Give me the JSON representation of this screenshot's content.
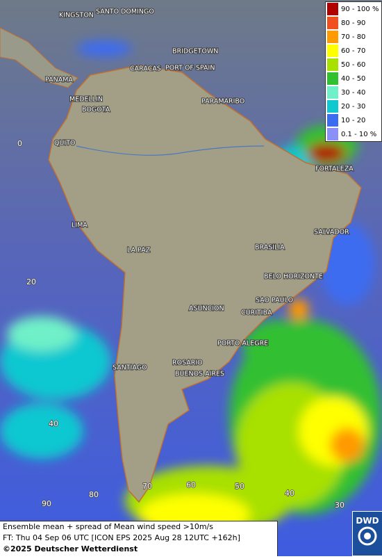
{
  "map": {
    "cities": [
      "KINGSTON",
      "SANTO DOMINGO",
      "BRIDGETOWN",
      "CARACAS",
      "PORT OF SPAIN",
      "PANAMA",
      "MEDELLIN",
      "BOGOTA",
      "PARAMARIBO",
      "QUITO",
      "FORTALEZA",
      "LIMA",
      "SALVADOR",
      "LA PAZ",
      "BRASILIA",
      "BELO HORIZONTE",
      "SAO PAULO",
      "ASUNCION",
      "CURITIBA",
      "PORTO ALEGRE",
      "ROSARIO",
      "SANTIAGO",
      "BUENOS AIRES"
    ],
    "grid_labels": [
      "0",
      "20",
      "40",
      "90",
      "80",
      "70",
      "60",
      "50",
      "40",
      "30"
    ]
  },
  "legend": {
    "items": [
      {
        "label": "90 - 100 %",
        "color": "#b00000"
      },
      {
        "label": "80 - 90",
        "color": "#f05020"
      },
      {
        "label": "70 - 80",
        "color": "#ff9a00"
      },
      {
        "label": "60 - 70",
        "color": "#ffff00"
      },
      {
        "label": "50 - 60",
        "color": "#a8e000"
      },
      {
        "label": "40 - 50",
        "color": "#30c030"
      },
      {
        "label": "30 - 40",
        "color": "#70f0c8"
      },
      {
        "label": "20 - 30",
        "color": "#10c8d0"
      },
      {
        "label": "10 - 20",
        "color": "#3c6cf0"
      },
      {
        "label": "0.1 - 10 %",
        "color": "#8a90f8"
      }
    ]
  },
  "footer": {
    "line1": "Ensemble mean + spread of Mean wind speed >10m/s",
    "line2": "FT: Thu 04 Sep 06 UTC [ICON EPS 2025 Aug 28 12UTC +162h]",
    "line3": "©2025 Deutscher Wetterdienst"
  },
  "logo": "DWD"
}
